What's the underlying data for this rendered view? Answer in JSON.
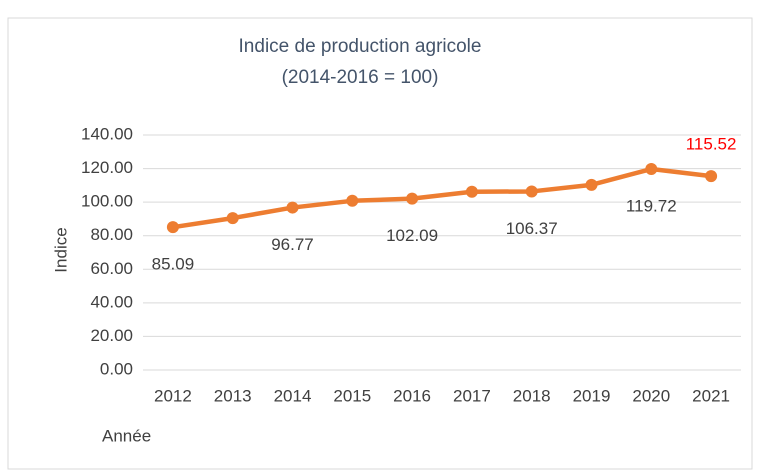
{
  "chart_data": {
    "type": "line",
    "title": [
      "Indice de production agricole",
      "(2014-2016 = 100)"
    ],
    "x_label": "Année",
    "y_label": "Indice",
    "categories": [
      "2012",
      "2013",
      "2014",
      "2015",
      "2016",
      "2017",
      "2018",
      "2019",
      "2020",
      "2021"
    ],
    "series": [
      {
        "name": "Indice",
        "color": "#ed7d31",
        "values": [
          85.09,
          90.5,
          96.77,
          100.8,
          102.09,
          106.2,
          106.37,
          110.3,
          119.72,
          115.52
        ],
        "value_labels": [
          "85.09",
          null,
          "96.77",
          null,
          "102.09",
          null,
          "106.37",
          null,
          "119.72",
          "115.52"
        ],
        "value_label_colors": [
          "#404040",
          null,
          "#404040",
          null,
          "#404040",
          null,
          "#404040",
          null,
          "#404040",
          "#ff0000"
        ]
      }
    ],
    "ylim": [
      0,
      140
    ],
    "yticks": [
      {
        "value": 0,
        "label": "0.00"
      },
      {
        "value": 20,
        "label": "20.00"
      },
      {
        "value": 40,
        "label": "40.00"
      },
      {
        "value": 60,
        "label": "60.00"
      },
      {
        "value": 80,
        "label": "80.00"
      },
      {
        "value": 100,
        "label": "100.00"
      },
      {
        "value": 120,
        "label": "120.00"
      },
      {
        "value": 140,
        "label": "140.00"
      }
    ],
    "grid": true
  }
}
